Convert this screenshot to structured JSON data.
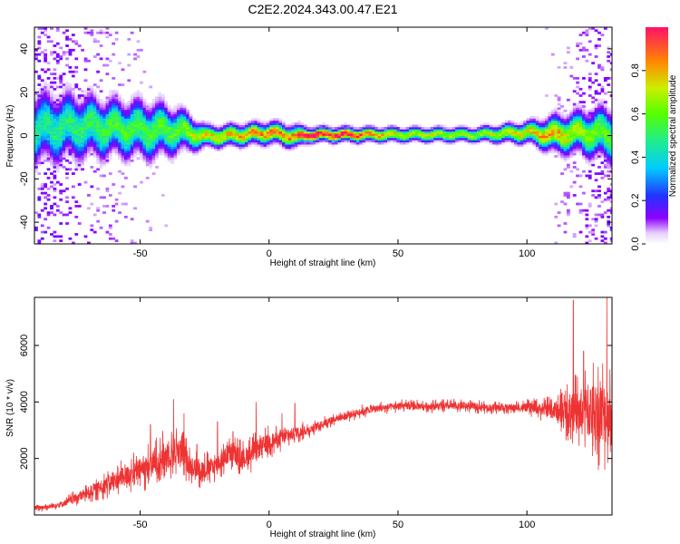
{
  "page": {
    "title": "C2E2.2024.343.00.47.E21"
  },
  "chart_data": [
    {
      "type": "heatmap",
      "xlabel": "Height of straight line (km)",
      "ylabel": "Frequency (Hz)",
      "colorbar_label": "Normalized spectral amplitude",
      "xlim": [
        -91,
        133
      ],
      "ylim": [
        -50,
        50
      ],
      "x_ticks": [
        -50,
        0,
        50,
        100
      ],
      "y_ticks": [
        -40,
        -20,
        0,
        20,
        40
      ],
      "colorbar_ticks": [
        0.0,
        0.2,
        0.4,
        0.6,
        0.8
      ],
      "colorbar_range": [
        0,
        1
      ],
      "ridge_profile": [
        {
          "x": -88,
          "center_hz": 3,
          "halfwidth_hz": 10,
          "peak": 0.45
        },
        {
          "x": -75,
          "center_hz": 4,
          "halfwidth_hz": 9,
          "peak": 0.5
        },
        {
          "x": -60,
          "center_hz": 3,
          "halfwidth_hz": 8,
          "peak": 0.55
        },
        {
          "x": -45,
          "center_hz": 2,
          "halfwidth_hz": 8,
          "peak": 0.55
        },
        {
          "x": -35,
          "center_hz": 2,
          "halfwidth_hz": 6,
          "peak": 0.6
        },
        {
          "x": -25,
          "center_hz": -1,
          "halfwidth_hz": 3,
          "peak": 0.75
        },
        {
          "x": -10,
          "center_hz": 0,
          "halfwidth_hz": 3,
          "peak": 0.8
        },
        {
          "x": 0,
          "center_hz": 1,
          "halfwidth_hz": 3,
          "peak": 0.85
        },
        {
          "x": 10,
          "center_hz": -1,
          "halfwidth_hz": 3,
          "peak": 0.85
        },
        {
          "x": 15,
          "center_hz": 0,
          "halfwidth_hz": 2,
          "peak": 1.0
        },
        {
          "x": 30,
          "center_hz": 0,
          "halfwidth_hz": 2,
          "peak": 1.0
        },
        {
          "x": 50,
          "center_hz": 0,
          "halfwidth_hz": 2,
          "peak": 0.7
        },
        {
          "x": 80,
          "center_hz": 0,
          "halfwidth_hz": 2,
          "peak": 0.65
        },
        {
          "x": 100,
          "center_hz": 1,
          "halfwidth_hz": 3,
          "peak": 0.75
        },
        {
          "x": 110,
          "center_hz": 0,
          "halfwidth_hz": 5,
          "peak": 0.8
        },
        {
          "x": 120,
          "center_hz": 1,
          "halfwidth_hz": 6,
          "peak": 0.65
        },
        {
          "x": 133,
          "center_hz": 0,
          "halfwidth_hz": 8,
          "peak": 0.55
        }
      ]
    },
    {
      "type": "line",
      "xlabel": "Height of straight line (km)",
      "ylabel": "SNR (10 * v/v)",
      "xlim": [
        -91,
        133
      ],
      "ylim": [
        0,
        7700
      ],
      "x_ticks": [
        -50,
        0,
        50,
        100
      ],
      "y_ticks": [
        2000,
        4000,
        6000
      ],
      "color": "#ee3333",
      "series": [
        {
          "x": [
            -91,
            -85,
            -80,
            -75,
            -70,
            -65,
            -60,
            -55,
            -50,
            -45,
            -40,
            -35,
            -30,
            -25,
            -20,
            -15,
            -10,
            -5,
            0,
            5,
            10,
            15,
            20,
            25,
            30,
            35,
            40,
            45,
            50,
            55,
            60,
            65,
            70,
            75,
            80,
            85,
            90,
            95,
            100,
            105,
            110,
            115,
            120,
            125,
            130,
            133
          ],
          "y": [
            250,
            300,
            400,
            600,
            800,
            1000,
            1200,
            1400,
            1600,
            1800,
            2100,
            2300,
            1700,
            1600,
            1800,
            2200,
            2000,
            2300,
            2600,
            2700,
            2900,
            3000,
            3200,
            3400,
            3500,
            3650,
            3750,
            3800,
            3850,
            3850,
            3850,
            3850,
            3850,
            3850,
            3850,
            3800,
            3800,
            3800,
            3800,
            3750,
            3700,
            3650,
            3600,
            3700,
            3600,
            3500
          ],
          "noise_amplitude": [
            150,
            150,
            200,
            300,
            400,
            500,
            600,
            700,
            800,
            900,
            1000,
            1000,
            700,
            700,
            600,
            700,
            700,
            700,
            600,
            500,
            400,
            300,
            250,
            250,
            250,
            250,
            250,
            250,
            250,
            250,
            250,
            250,
            250,
            250,
            250,
            250,
            250,
            250,
            300,
            400,
            600,
            1000,
            1600,
            2000,
            2200,
            2200
          ],
          "spikes": [
            {
              "x": -46,
              "y": 3200
            },
            {
              "x": -37,
              "y": 4100
            },
            {
              "x": -33,
              "y": 3600
            },
            {
              "x": -28,
              "y": 2500
            },
            {
              "x": -20,
              "y": 3300
            },
            {
              "x": -14,
              "y": 2950
            },
            {
              "x": -5,
              "y": 4000
            },
            {
              "x": 5,
              "y": 3600
            },
            {
              "x": 10,
              "y": 3950
            },
            {
              "x": 118,
              "y": 7600
            },
            {
              "x": 122,
              "y": 5800
            },
            {
              "x": 131,
              "y": 7700
            }
          ]
        }
      ]
    }
  ]
}
